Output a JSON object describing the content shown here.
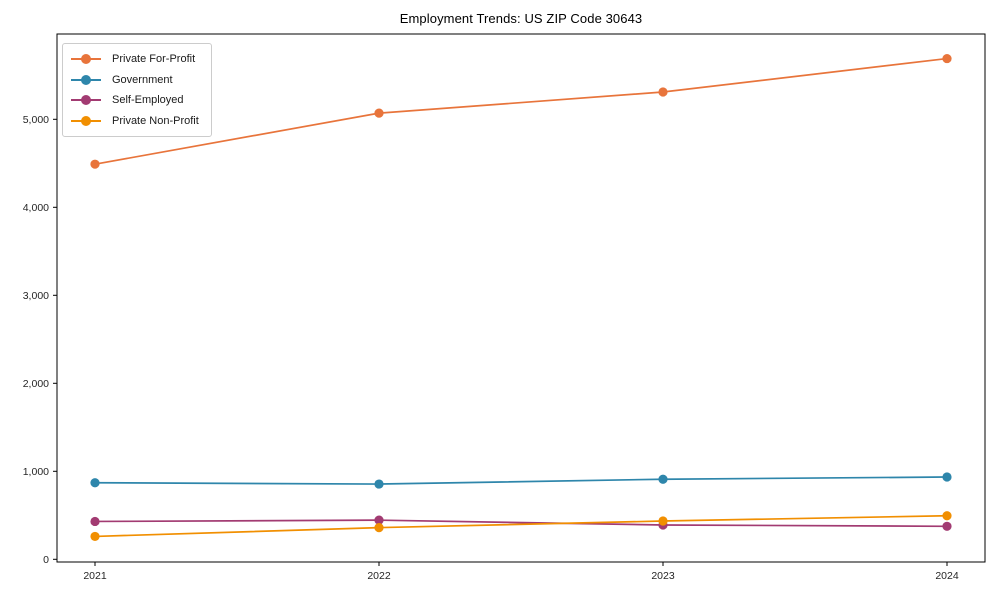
{
  "figure": {
    "background": "#ffffff",
    "axes_color": "#000000",
    "tick_label_color": "#262626"
  },
  "chart_data": {
    "type": "line",
    "title": "Employment Trends: US ZIP Code 30643",
    "categories": [
      "2021",
      "2022",
      "2023",
      "2024"
    ],
    "series": [
      {
        "name": "Private For-Profit",
        "color": "#E8743B",
        "values": [
          4490,
          5070,
          5310,
          5690
        ]
      },
      {
        "name": "Government",
        "color": "#2E86AB",
        "values": [
          870,
          855,
          910,
          935
        ]
      },
      {
        "name": "Self-Employed",
        "color": "#A23B72",
        "values": [
          430,
          445,
          390,
          375
        ]
      },
      {
        "name": "Private Non-Profit",
        "color": "#F18F01",
        "values": [
          260,
          360,
          435,
          495
        ]
      }
    ],
    "xlabel": "",
    "ylabel": "",
    "ylim": [
      -35,
      5965
    ],
    "yticks": [
      0,
      1000,
      2000,
      3000,
      4000,
      5000
    ],
    "ytick_labels": [
      "0",
      "1,000",
      "2,000",
      "3,000",
      "4,000",
      "5,000"
    ],
    "grid": false,
    "legend_position": "upper left",
    "marker": "circle",
    "line_width": 1.7,
    "marker_radius": 4.6
  }
}
